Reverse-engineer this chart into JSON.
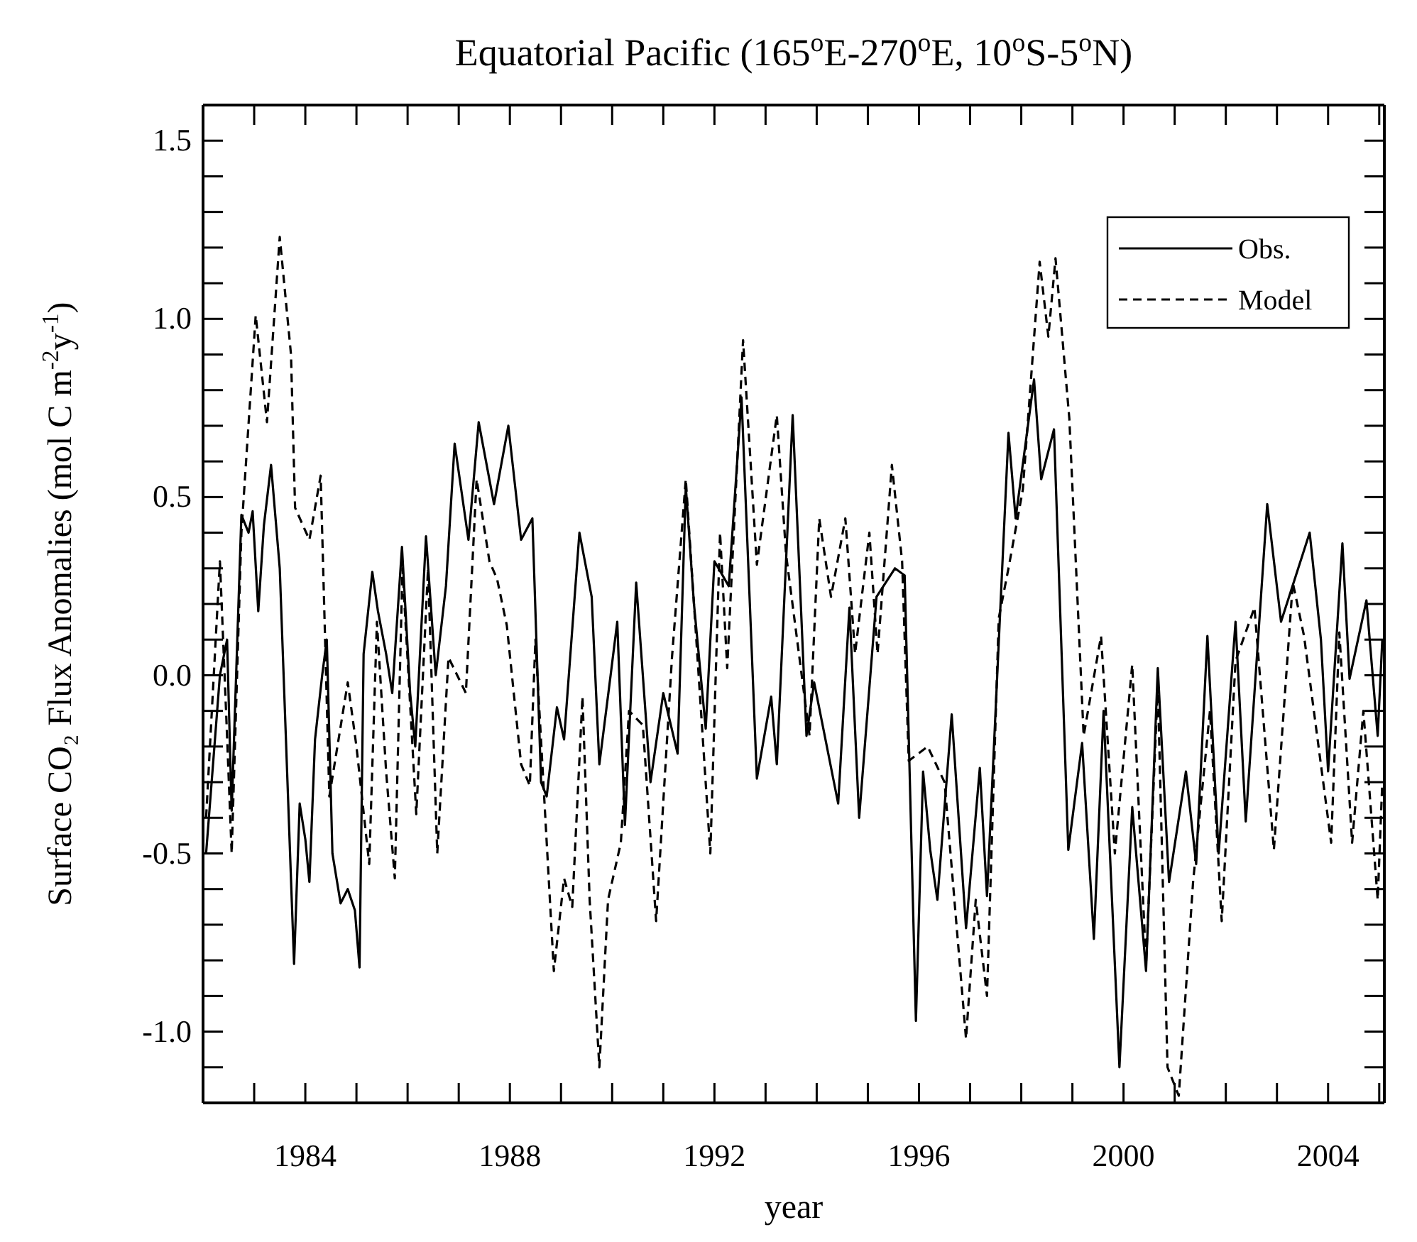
{
  "chart_data": {
    "type": "line",
    "title": "Equatorial Pacific (165$^{o}$E-270$^{o}$E, 10$^{o}$S-5$^{o}$N)",
    "xlabel": "year",
    "ylabel": "Surface CO₂ Flux Anomalies (mol C m$^{-2}$y$^{-1}$)",
    "xlim": [
      1982,
      2005.1
    ],
    "ylim": [
      -1.2,
      1.6
    ],
    "xticks": [
      {
        "value": 1982,
        "label": null
      },
      {
        "value": 1983,
        "label": null
      },
      1984,
      {
        "value": 1985,
        "label": null
      },
      {
        "value": 1986,
        "label": null
      },
      {
        "value": 1987,
        "label": null
      },
      1988,
      {
        "value": 1989,
        "label": null
      },
      {
        "value": 1990,
        "label": null
      },
      {
        "value": 1991,
        "label": null
      },
      1992,
      {
        "value": 1993,
        "label": null
      },
      {
        "value": 1994,
        "label": null
      },
      {
        "value": 1995,
        "label": null
      },
      1996,
      {
        "value": 1997,
        "label": null
      },
      {
        "value": 1998,
        "label": null
      },
      {
        "value": 1999,
        "label": null
      },
      2000,
      {
        "value": 2001,
        "label": null
      },
      {
        "value": 2002,
        "label": null
      },
      {
        "value": 2003,
        "label": null
      },
      2004,
      {
        "value": 2005,
        "label": null
      }
    ],
    "yticks": [
      {
        "value": -1.1,
        "label": null
      },
      {
        "value": -1.0,
        "label": "-1.0"
      },
      {
        "value": -0.9,
        "label": null
      },
      {
        "value": -0.8,
        "label": null
      },
      {
        "value": -0.7,
        "label": null
      },
      {
        "value": -0.6,
        "label": null
      },
      {
        "value": -0.5,
        "label": "-0.5"
      },
      {
        "value": -0.4,
        "label": null
      },
      {
        "value": -0.3,
        "label": null
      },
      {
        "value": -0.2,
        "label": null
      },
      {
        "value": -0.1,
        "label": null
      },
      {
        "value": 0,
        "label": "0.0"
      },
      {
        "value": 0.1,
        "label": null
      },
      {
        "value": 0.2,
        "label": null
      },
      {
        "value": 0.3,
        "label": null
      },
      {
        "value": 0.4,
        "label": null
      },
      {
        "value": 0.5,
        "label": "0.5"
      },
      {
        "value": 0.6,
        "label": null
      },
      {
        "value": 0.7,
        "label": null
      },
      {
        "value": 0.8,
        "label": null
      },
      {
        "value": 0.9,
        "label": null
      },
      {
        "value": 1.0,
        "label": "1.0"
      },
      {
        "value": 1.1,
        "label": null
      },
      {
        "value": 1.2,
        "label": null
      },
      {
        "value": 1.3,
        "label": null
      },
      {
        "value": 1.4,
        "label": null
      },
      {
        "value": 1.5,
        "label": "1.5"
      }
    ],
    "grid": false,
    "legend": "top right",
    "marker": "none",
    "series": [
      {
        "name": "Obs.",
        "color": "#000000",
        "line_style": "solid",
        "x": [
          1982.06,
          1982.19,
          1982.33,
          1982.47,
          1982.56,
          1982.75,
          1982.89,
          1982.97,
          1983.08,
          1983.19,
          1983.33,
          1983.5,
          1983.78,
          1983.89,
          1984.0,
          1984.08,
          1984.19,
          1984.33,
          1984.42,
          1984.53,
          1984.69,
          1984.83,
          1984.97,
          1985.06,
          1985.14,
          1985.31,
          1985.42,
          1985.58,
          1985.7,
          1985.89,
          1986.05,
          1986.15,
          1986.36,
          1986.55,
          1986.75,
          1986.92,
          1987.19,
          1987.39,
          1987.69,
          1987.97,
          1988.22,
          1988.44,
          1988.61,
          1988.72,
          1988.92,
          1989.06,
          1989.36,
          1989.6,
          1989.75,
          1989.97,
          1990.1,
          1990.25,
          1990.47,
          1990.75,
          1991.0,
          1991.28,
          1991.44,
          1991.6,
          1991.83,
          1992.0,
          1992.28,
          1992.53,
          1992.83,
          1993.11,
          1993.22,
          1993.53,
          1993.8,
          1993.95,
          1994.42,
          1994.64,
          1994.83,
          1995.17,
          1995.53,
          1995.72,
          1995.94,
          1996.08,
          1996.22,
          1996.36,
          1996.64,
          1996.92,
          1997.19,
          1997.33,
          1997.75,
          1997.89,
          1998.25,
          1998.39,
          1998.64,
          1998.92,
          1999.19,
          1999.42,
          1999.61,
          1999.92,
          2000.17,
          2000.44,
          2000.67,
          2000.89,
          2001.22,
          2001.42,
          2001.64,
          2001.86,
          2002.19,
          2002.39,
          2002.81,
          2003.08,
          2003.64,
          2003.86,
          2004.0,
          2004.28,
          2004.42,
          2004.75,
          2004.97,
          2005.06
        ],
        "values": [
          -0.5,
          -0.26,
          0.0,
          0.1,
          -0.38,
          0.45,
          0.4,
          0.46,
          0.18,
          0.42,
          0.59,
          0.3,
          -0.81,
          -0.36,
          -0.46,
          -0.58,
          -0.18,
          0.0,
          0.1,
          -0.5,
          -0.64,
          -0.6,
          -0.66,
          -0.82,
          0.06,
          0.29,
          0.18,
          0.06,
          -0.05,
          0.36,
          -0.05,
          -0.2,
          0.39,
          0.0,
          0.25,
          0.65,
          0.38,
          0.71,
          0.48,
          0.7,
          0.38,
          0.44,
          -0.3,
          -0.34,
          -0.09,
          -0.18,
          0.4,
          0.22,
          -0.25,
          0.0,
          0.15,
          -0.42,
          0.26,
          -0.3,
          -0.05,
          -0.22,
          0.53,
          0.2,
          -0.15,
          0.32,
          0.25,
          0.78,
          -0.29,
          -0.06,
          -0.25,
          0.73,
          -0.17,
          -0.02,
          -0.36,
          0.19,
          -0.4,
          0.22,
          0.3,
          0.28,
          -0.97,
          -0.27,
          -0.49,
          -0.63,
          -0.11,
          -0.71,
          -0.26,
          -0.62,
          0.68,
          0.44,
          0.83,
          0.55,
          0.69,
          -0.49,
          -0.19,
          -0.74,
          -0.1,
          -1.1,
          -0.37,
          -0.83,
          0.02,
          -0.58,
          -0.27,
          -0.53,
          0.11,
          -0.5,
          0.15,
          -0.41,
          0.48,
          0.15,
          0.4,
          0.1,
          -0.27,
          0.37,
          -0.01,
          0.21,
          -0.17,
          0.1
        ]
      },
      {
        "name": "Model",
        "color": "#000000",
        "line_style": "dashed",
        "x": [
          1982.06,
          1982.33,
          1982.45,
          1982.56,
          1982.75,
          1983.03,
          1983.25,
          1983.5,
          1983.72,
          1983.8,
          1984.08,
          1984.3,
          1984.47,
          1984.83,
          1985.0,
          1985.25,
          1985.4,
          1985.58,
          1985.75,
          1985.9,
          1986.17,
          1986.4,
          1986.58,
          1986.8,
          1987.14,
          1987.35,
          1987.6,
          1987.75,
          1987.94,
          1988.22,
          1988.39,
          1988.5,
          1988.86,
          1989.06,
          1989.22,
          1989.42,
          1989.56,
          1989.75,
          1989.92,
          1990.17,
          1990.33,
          1990.6,
          1990.86,
          1991.17,
          1991.44,
          1991.92,
          1992.11,
          1992.25,
          1992.56,
          1992.83,
          1993.22,
          1993.4,
          1993.86,
          1994.05,
          1994.28,
          1994.56,
          1994.75,
          1995.03,
          1995.19,
          1995.47,
          1995.67,
          1995.8,
          1996.17,
          1996.5,
          1996.92,
          1997.11,
          1997.33,
          1997.56,
          1997.75,
          1998.03,
          1998.36,
          1998.53,
          1998.67,
          1998.94,
          1999.22,
          1999.56,
          1999.83,
          2000.17,
          2000.44,
          2000.67,
          2000.86,
          2001.08,
          2001.36,
          2001.69,
          2001.92,
          2002.19,
          2002.56,
          2002.94,
          2003.31,
          2003.53,
          2004.06,
          2004.22,
          2004.47,
          2004.69,
          2004.97,
          2005.06
        ],
        "values": [
          -0.4,
          0.32,
          -0.1,
          -0.5,
          0.4,
          1.01,
          0.71,
          1.23,
          0.9,
          0.47,
          0.38,
          0.56,
          -0.34,
          -0.02,
          -0.2,
          -0.53,
          0.15,
          -0.27,
          -0.57,
          0.3,
          -0.39,
          0.3,
          -0.5,
          0.05,
          -0.05,
          0.55,
          0.32,
          0.27,
          0.14,
          -0.25,
          -0.31,
          0.1,
          -0.83,
          -0.57,
          -0.65,
          -0.06,
          -0.63,
          -1.1,
          -0.63,
          -0.47,
          -0.1,
          -0.14,
          -0.69,
          0.05,
          0.55,
          -0.5,
          0.4,
          0.02,
          0.94,
          0.31,
          0.73,
          0.34,
          -0.17,
          0.44,
          0.22,
          0.44,
          0.06,
          0.4,
          0.06,
          0.59,
          0.32,
          -0.24,
          -0.2,
          -0.3,
          -1.02,
          -0.63,
          -0.9,
          0.16,
          0.3,
          0.52,
          1.16,
          0.95,
          1.17,
          0.72,
          -0.17,
          0.11,
          -0.5,
          0.03,
          -0.81,
          -0.03,
          -1.1,
          -1.18,
          -0.58,
          -0.1,
          -0.69,
          0.04,
          0.19,
          -0.49,
          0.26,
          0.11,
          -0.47,
          0.12,
          -0.47,
          -0.1,
          -0.63,
          -0.3
        ]
      }
    ]
  }
}
